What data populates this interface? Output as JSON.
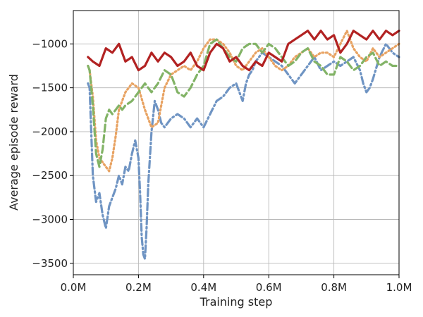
{
  "chart_data": {
    "type": "line",
    "title": "",
    "xlabel": "Training step",
    "ylabel": "Average episode reward",
    "xlim": [
      0,
      1.0
    ],
    "ylim": [
      -3630,
      -620
    ],
    "x_unit": "M",
    "x_ticks": [
      0.0,
      0.2,
      0.4,
      0.6,
      0.8,
      1.0
    ],
    "x_tick_labels": [
      "0.0M",
      "0.2M",
      "0.4M",
      "0.6M",
      "0.8M",
      "1.0M"
    ],
    "y_ticks": [
      -3500,
      -3000,
      -2500,
      -2000,
      -1500,
      -1000
    ],
    "y_tick_labels": [
      "−3500",
      "−3000",
      "−2500",
      "−2000",
      "−1500",
      "−1000"
    ],
    "grid": true,
    "legend": "none",
    "series": [
      {
        "color": "#6f94c3",
        "style": "dashdot",
        "x": [
          0.045,
          0.05,
          0.06,
          0.07,
          0.08,
          0.09,
          0.1,
          0.11,
          0.12,
          0.13,
          0.14,
          0.15,
          0.16,
          0.17,
          0.18,
          0.19,
          0.2,
          0.205,
          0.21,
          0.215,
          0.22,
          0.225,
          0.23,
          0.24,
          0.25,
          0.26,
          0.27,
          0.28,
          0.3,
          0.32,
          0.34,
          0.36,
          0.38,
          0.4,
          0.42,
          0.44,
          0.46,
          0.48,
          0.5,
          0.51,
          0.52,
          0.53,
          0.54,
          0.55,
          0.56,
          0.58,
          0.6,
          0.62,
          0.64,
          0.66,
          0.68,
          0.7,
          0.72,
          0.74,
          0.76,
          0.78,
          0.8,
          0.82,
          0.84,
          0.86,
          0.88,
          0.89,
          0.9,
          0.91,
          0.92,
          0.94,
          0.96,
          0.98,
          1.0
        ],
        "y": [
          -1450,
          -1500,
          -2500,
          -2800,
          -2700,
          -2950,
          -3100,
          -2850,
          -2750,
          -2650,
          -2500,
          -2600,
          -2400,
          -2450,
          -2250,
          -2100,
          -2300,
          -2700,
          -3200,
          -3400,
          -3450,
          -3100,
          -2600,
          -2000,
          -1650,
          -1750,
          -1900,
          -1950,
          -1850,
          -1800,
          -1850,
          -1950,
          -1850,
          -1950,
          -1800,
          -1650,
          -1600,
          -1500,
          -1450,
          -1550,
          -1650,
          -1450,
          -1350,
          -1300,
          -1200,
          -1100,
          -1150,
          -1200,
          -1250,
          -1350,
          -1450,
          -1350,
          -1250,
          -1150,
          -1300,
          -1250,
          -1200,
          -1250,
          -1200,
          -1150,
          -1300,
          -1450,
          -1550,
          -1500,
          -1400,
          -1150,
          -1000,
          -1100,
          -1150
        ]
      },
      {
        "color": "#e8a363",
        "style": "dotted",
        "x": [
          0.045,
          0.05,
          0.06,
          0.07,
          0.08,
          0.09,
          0.1,
          0.11,
          0.12,
          0.13,
          0.14,
          0.15,
          0.16,
          0.18,
          0.2,
          0.22,
          0.24,
          0.26,
          0.28,
          0.3,
          0.32,
          0.34,
          0.36,
          0.38,
          0.4,
          0.42,
          0.44,
          0.46,
          0.48,
          0.5,
          0.52,
          0.54,
          0.56,
          0.58,
          0.6,
          0.62,
          0.64,
          0.66,
          0.68,
          0.7,
          0.72,
          0.74,
          0.76,
          0.78,
          0.8,
          0.82,
          0.84,
          0.86,
          0.88,
          0.9,
          0.92,
          0.94,
          0.96,
          0.98,
          1.0
        ],
        "y": [
          -1250,
          -1300,
          -1600,
          -2100,
          -2300,
          -2350,
          -2400,
          -2450,
          -2300,
          -2050,
          -1750,
          -1650,
          -1550,
          -1450,
          -1500,
          -1750,
          -1950,
          -1900,
          -1500,
          -1350,
          -1300,
          -1250,
          -1300,
          -1200,
          -1050,
          -950,
          -950,
          -1000,
          -1100,
          -1250,
          -1300,
          -1200,
          -1100,
          -1050,
          -1150,
          -1250,
          -1300,
          -1250,
          -1150,
          -1100,
          -1050,
          -1150,
          -1100,
          -1100,
          -1150,
          -1000,
          -850,
          -1050,
          -1150,
          -1200,
          -1050,
          -1150,
          -1100,
          -1050,
          -1000
        ]
      },
      {
        "color": "#82b366",
        "style": "dashed",
        "x": [
          0.045,
          0.05,
          0.06,
          0.07,
          0.08,
          0.09,
          0.1,
          0.11,
          0.12,
          0.13,
          0.14,
          0.15,
          0.16,
          0.18,
          0.2,
          0.22,
          0.24,
          0.26,
          0.28,
          0.3,
          0.32,
          0.34,
          0.36,
          0.38,
          0.4,
          0.42,
          0.44,
          0.46,
          0.48,
          0.5,
          0.52,
          0.54,
          0.56,
          0.58,
          0.6,
          0.62,
          0.64,
          0.66,
          0.68,
          0.7,
          0.72,
          0.74,
          0.76,
          0.78,
          0.8,
          0.82,
          0.84,
          0.86,
          0.88,
          0.9,
          0.92,
          0.94,
          0.96,
          0.98,
          1.0
        ],
        "y": [
          -1250,
          -1300,
          -1700,
          -2250,
          -2400,
          -2200,
          -1850,
          -1750,
          -1800,
          -1750,
          -1700,
          -1750,
          -1700,
          -1650,
          -1550,
          -1450,
          -1550,
          -1450,
          -1300,
          -1350,
          -1550,
          -1600,
          -1500,
          -1350,
          -1250,
          -1000,
          -950,
          -1050,
          -1150,
          -1200,
          -1050,
          -1000,
          -1000,
          -1100,
          -1000,
          -1050,
          -1150,
          -1250,
          -1200,
          -1100,
          -1050,
          -1200,
          -1250,
          -1350,
          -1350,
          -1150,
          -1200,
          -1300,
          -1250,
          -1150,
          -1100,
          -1250,
          -1200,
          -1250,
          -1250
        ]
      },
      {
        "color": "#b22222",
        "style": "solid",
        "x": [
          0.045,
          0.06,
          0.08,
          0.1,
          0.12,
          0.14,
          0.16,
          0.18,
          0.2,
          0.22,
          0.24,
          0.26,
          0.28,
          0.3,
          0.32,
          0.34,
          0.36,
          0.38,
          0.4,
          0.42,
          0.44,
          0.46,
          0.48,
          0.5,
          0.52,
          0.54,
          0.56,
          0.58,
          0.6,
          0.62,
          0.64,
          0.66,
          0.68,
          0.7,
          0.72,
          0.74,
          0.76,
          0.78,
          0.8,
          0.82,
          0.84,
          0.86,
          0.88,
          0.9,
          0.92,
          0.94,
          0.96,
          0.98,
          1.0
        ],
        "y": [
          -1150,
          -1200,
          -1250,
          -1050,
          -1100,
          -1000,
          -1200,
          -1150,
          -1300,
          -1250,
          -1100,
          -1200,
          -1100,
          -1150,
          -1250,
          -1200,
          -1100,
          -1250,
          -1300,
          -1100,
          -1000,
          -1050,
          -1200,
          -1150,
          -1250,
          -1300,
          -1200,
          -1250,
          -1100,
          -1150,
          -1200,
          -1000,
          -950,
          -900,
          -850,
          -950,
          -850,
          -950,
          -900,
          -1100,
          -1000,
          -850,
          -900,
          -950,
          -850,
          -950,
          -850,
          -900,
          -850
        ]
      }
    ]
  }
}
